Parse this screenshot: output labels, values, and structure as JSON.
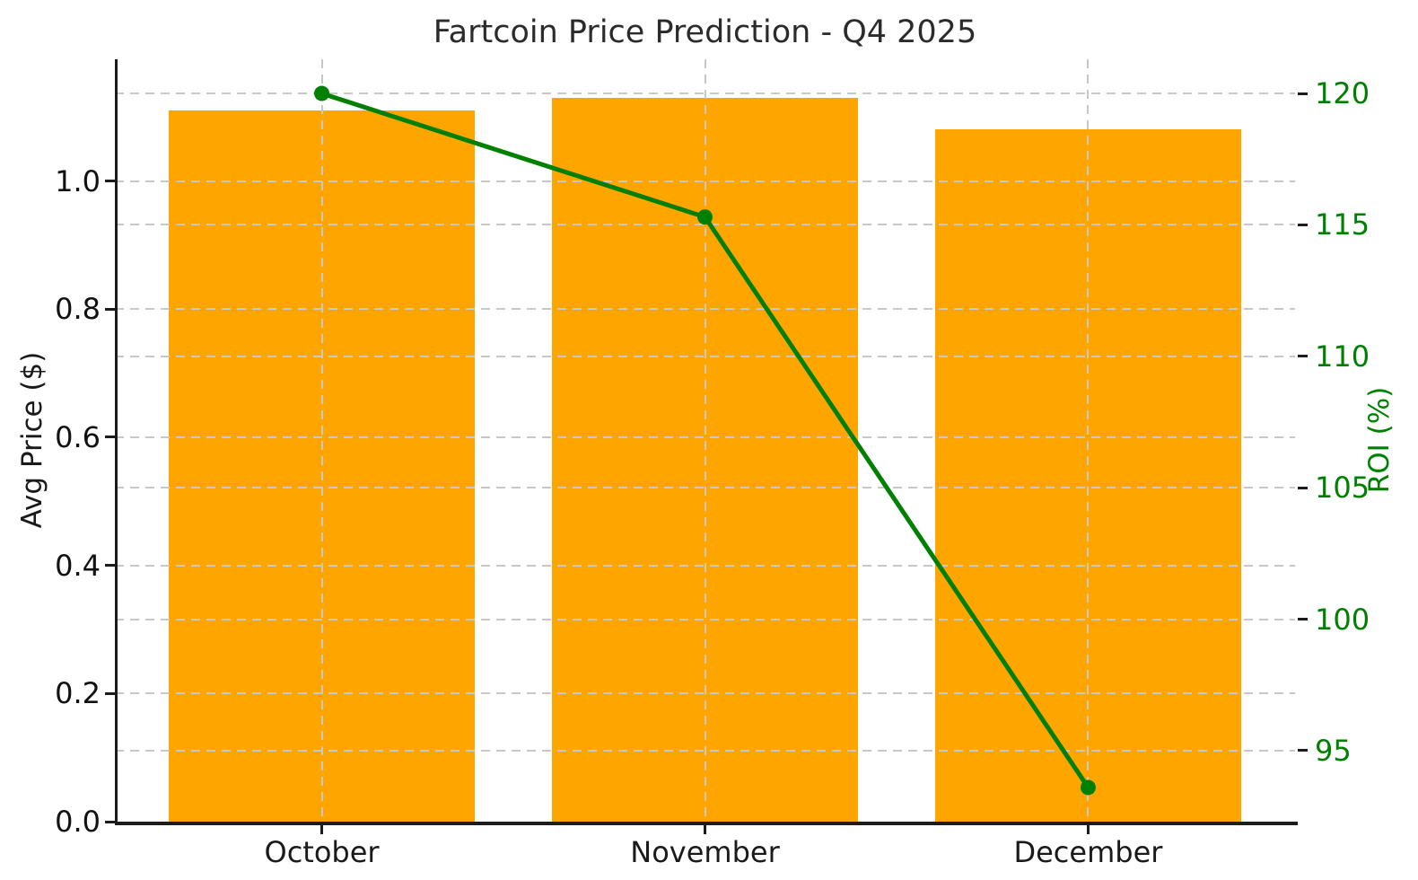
{
  "chart_data": {
    "type": "combo-bar-line-dual-axis",
    "title": "Fartcoin Price Prediction - Q4 2025",
    "categories": [
      "October",
      "November",
      "December"
    ],
    "series": [
      {
        "name": "Avg Price ($)",
        "type": "bar",
        "axis": "left",
        "values": [
          1.11,
          1.13,
          1.08
        ],
        "color": "#FFA500"
      },
      {
        "name": "ROI (%)",
        "type": "line",
        "axis": "right",
        "values": [
          120.0,
          115.3,
          93.6
        ],
        "color": "#008000"
      }
    ],
    "left_axis": {
      "label": "Avg Price ($)",
      "range": [
        0,
        1.19
      ],
      "ticks": [
        "0.0",
        "0.2",
        "0.4",
        "0.6",
        "0.8",
        "1.0"
      ],
      "color": "#111111"
    },
    "right_axis": {
      "label": "ROI (%)",
      "range": [
        92.3,
        121.3
      ],
      "ticks": [
        "95",
        "100",
        "105",
        "110",
        "115",
        "120"
      ],
      "color": "#008000"
    },
    "x_range": [
      -0.54,
      2.54
    ],
    "bar_width_units": 0.8,
    "grid": {
      "style": "dashed",
      "color": "#c8c8c8",
      "horizontal": "both-axes-major",
      "vertical": "at-category-centers"
    },
    "legend": "none"
  }
}
